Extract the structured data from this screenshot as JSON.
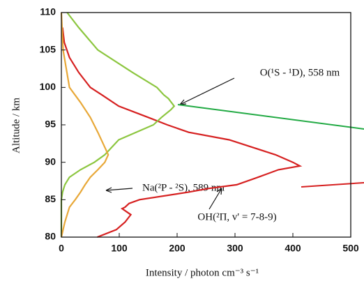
{
  "chart_data": {
    "type": "line",
    "xlabel": "Intensity / photon cm⁻³ s⁻¹",
    "ylabel": "Altitude / km",
    "xlim": [
      0,
      500
    ],
    "ylim": [
      80,
      110
    ],
    "xticks": [
      0,
      100,
      200,
      300,
      400,
      500
    ],
    "yticks": [
      80,
      85,
      90,
      95,
      100,
      105,
      110
    ],
    "series": [
      {
        "name": "OH(²Π, v' = 7-8-9)",
        "color": "#d62020",
        "x": [
          62,
          95,
          110,
          120,
          105,
          110,
          117,
          135,
          219,
          255,
          303,
          340,
          375,
          412,
          400,
          370,
          290,
          220,
          183,
          150,
          99,
          70,
          50,
          30,
          14,
          5,
          2
        ],
        "y": [
          80,
          81,
          82,
          83,
          83.8,
          84,
          84.5,
          85,
          86,
          86.5,
          87,
          88,
          89,
          89.5,
          90,
          91,
          93,
          94,
          95,
          96,
          97.5,
          99,
          100,
          102,
          104,
          106,
          108
        ]
      },
      {
        "name": "O(¹S - ¹D), 558 nm",
        "color": "#8cc63f",
        "x": [
          0,
          0,
          2,
          6,
          14,
          33,
          57,
          75,
          87,
          99,
          129,
          159,
          173,
          189,
          195,
          185,
          177,
          165,
          123,
          63,
          30,
          10
        ],
        "y": [
          80,
          85,
          86,
          87,
          88,
          89,
          90,
          91,
          92,
          93,
          94,
          95,
          96,
          97,
          97.5,
          98.5,
          99,
          100,
          102,
          105,
          108,
          110
        ]
      },
      {
        "name": "Na(²P - ²S), 589 nm",
        "color": "#e8a838",
        "x": [
          0,
          6,
          14,
          24,
          33,
          41,
          50,
          63,
          75,
          81,
          75,
          63,
          50,
          33,
          14,
          3,
          0
        ],
        "y": [
          80,
          82,
          84,
          85,
          86,
          87,
          88,
          89,
          90,
          91,
          92,
          94,
          96,
          98,
          100,
          105,
          110
        ]
      }
    ]
  }
}
